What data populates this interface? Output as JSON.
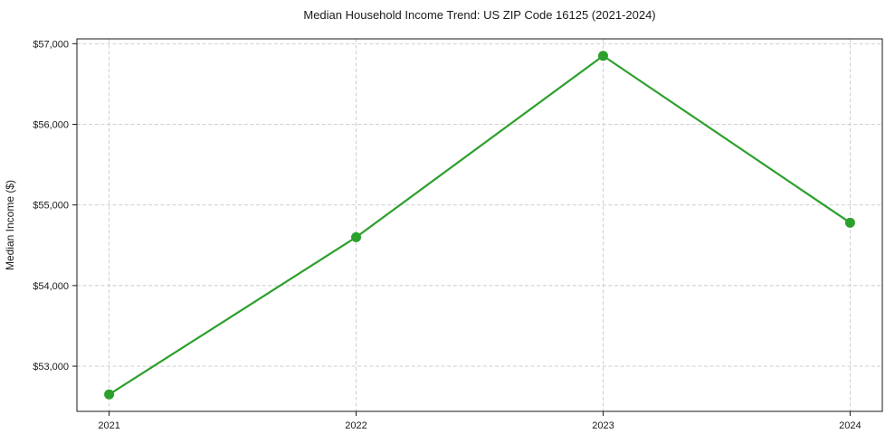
{
  "chart_data": {
    "type": "line",
    "title": "Median Household Income Trend: US ZIP Code 16125 (2021-2024)",
    "ylabel": "Median Income ($)",
    "xlabel": "",
    "categories": [
      "2021",
      "2022",
      "2023",
      "2024"
    ],
    "values": [
      52650,
      54600,
      56850,
      54780
    ],
    "ylim": [
      52440,
      57060
    ],
    "yticks": [
      53000,
      54000,
      55000,
      56000,
      57000
    ],
    "ytick_labels": [
      "$53,000",
      "$54,000",
      "$55,000",
      "$56,000",
      "$57,000"
    ],
    "grid": true,
    "grid_style": "dashed",
    "legend": "none",
    "line_color": "#2ca02c",
    "marker": "circle",
    "background_color": "#ffffff",
    "gridline_color": "#c9c9c9",
    "axis_color": "#1a1a1a"
  }
}
